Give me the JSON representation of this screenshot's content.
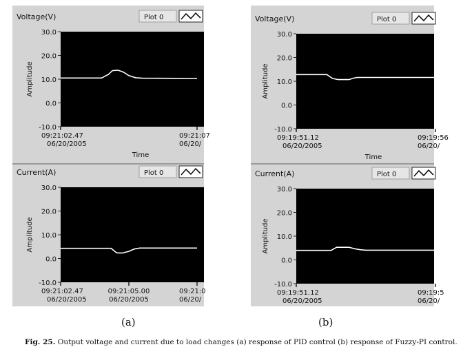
{
  "caption": {
    "label": "Fig. 25.",
    "text": "Output voltage and current due to load changes (a) response of PID control (b) response of Fuzzy-PI control."
  },
  "colors": {
    "panel_bg": "#d4d4d4",
    "plot_bg": "#000000",
    "trace": "#ffffff",
    "text": "#111111"
  },
  "chart_data": [
    {
      "panel": "(a)",
      "position": "top",
      "type": "line",
      "title": "Voltage(V)",
      "legend": "Plot 0",
      "ylabel": "Amplitude",
      "xlabel": "Time",
      "ylim": [
        -10,
        30
      ],
      "yticks": [
        "30.0",
        "20.0",
        "10.0",
        "0.0",
        "-10.0"
      ],
      "xticks": [
        {
          "at": 0,
          "time": "09:21:02.47",
          "date": "06/20/2005"
        },
        {
          "at": 1,
          "time": "09:21:07",
          "date": "06/20/"
        }
      ],
      "series": [
        {
          "x": [
            0,
            0.3,
            0.35,
            0.38,
            0.42,
            0.46,
            0.5,
            0.55,
            0.6,
            1.0
          ],
          "y": [
            10.5,
            10.5,
            12,
            13.6,
            13.8,
            13,
            11.5,
            10.6,
            10.4,
            10.3
          ]
        }
      ]
    },
    {
      "panel": "(a)",
      "position": "bottom",
      "type": "line",
      "title": "Current(A)",
      "legend": "Plot 0",
      "ylabel": "Amplitude",
      "xlabel": "",
      "ylim": [
        -10,
        30
      ],
      "yticks": [
        "30.0",
        "20.0",
        "10.0",
        "0.0",
        "-10.0"
      ],
      "xticks": [
        {
          "at": 0,
          "time": "09:21:02.47",
          "date": "06/20/2005"
        },
        {
          "at": 0.5,
          "time": "09:21:05.00",
          "date": "06/20/2005"
        },
        {
          "at": 1,
          "time": "09:21:0",
          "date": "06/20/"
        }
      ],
      "series": [
        {
          "x": [
            0,
            0.37,
            0.41,
            0.45,
            0.5,
            0.54,
            0.58,
            1.0
          ],
          "y": [
            4.3,
            4.3,
            2.4,
            2.3,
            3,
            4,
            4.4,
            4.4
          ]
        }
      ]
    },
    {
      "panel": "(b)",
      "position": "top",
      "type": "line",
      "title": "Voltage(V)",
      "legend": "Plot 0",
      "ylabel": "Amplitude",
      "xlabel": "Time",
      "ylim": [
        -10,
        30
      ],
      "yticks": [
        "30.0",
        "20.0",
        "10.0",
        "0.0",
        "-10.0"
      ],
      "xticks": [
        {
          "at": 0,
          "time": "09:19:51.12",
          "date": "06/20/2005"
        },
        {
          "at": 1,
          "time": "09:19:56",
          "date": "06/20/"
        }
      ],
      "series": [
        {
          "x": [
            0,
            0.22,
            0.26,
            0.3,
            0.38,
            0.41,
            0.44,
            1.0
          ],
          "y": [
            12.8,
            12.8,
            11.2,
            10.7,
            10.7,
            11.3,
            11.6,
            11.6
          ]
        }
      ]
    },
    {
      "panel": "(b)",
      "position": "bottom",
      "type": "line",
      "title": "Current(A)",
      "legend": "Plot 0",
      "ylabel": "Amplitude",
      "xlabel": "",
      "ylim": [
        -10,
        30
      ],
      "yticks": [
        "30.0",
        "20.0",
        "10.0",
        "0.0",
        "-10.0"
      ],
      "xticks": [
        {
          "at": 0,
          "time": "09:19:51.12",
          "date": "06/20/2005"
        },
        {
          "at": 1,
          "time": "09:19:5",
          "date": "06/20/"
        }
      ],
      "series": [
        {
          "x": [
            0,
            0.25,
            0.29,
            0.38,
            0.42,
            0.46,
            0.5,
            1.0
          ],
          "y": [
            4,
            4,
            5.3,
            5.3,
            4.7,
            4.3,
            4.1,
            4.1
          ]
        }
      ]
    }
  ],
  "sublabels": [
    "(a)",
    "(b)"
  ]
}
